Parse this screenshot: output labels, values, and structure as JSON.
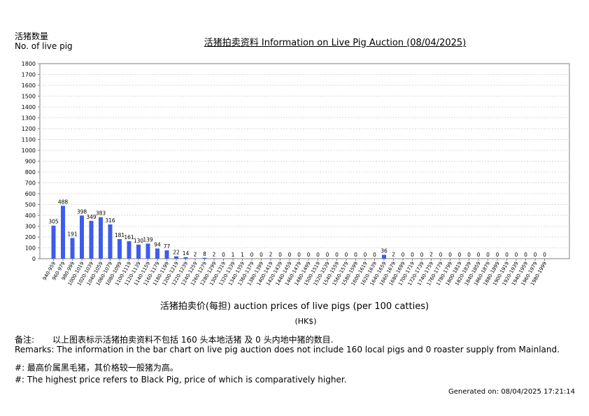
{
  "header": {
    "ylabel_zh": "活猪数量",
    "ylabel_en": "No. of live pig",
    "title": "活猪拍卖资料 Information on Live Pig Auction (08/04/2025)"
  },
  "axis": {
    "xlabel": "活猪拍卖价(每担) auction prices of live pigs (per 100 catties)",
    "unit": "(HK$)"
  },
  "notes": {
    "remark_zh_label": "备注:",
    "remark_zh": "以上图表标示活猪拍卖资料不包括 160 头本地活猪 及 0 头内地中猪的数目.",
    "remark_en": "Remarks: The information in the bar chart on live pig auction does not include 160 local pigs and 0 roaster supply from Mainland.",
    "hash_zh": "#: 最高价属黑毛猪，其价格较一般猪为高。",
    "hash_en": "#: The highest price refers to Black Pig, price of which is comparatively higher.",
    "generated": "Generated on: 08/04/2025 17:21:14"
  },
  "colors": {
    "bar": "#3d5ced",
    "grid": "#d9d9d9",
    "axis": "#808080"
  },
  "chart_data": {
    "type": "bar",
    "ylim": [
      0,
      1800
    ],
    "yticks": [
      0,
      100,
      200,
      300,
      400,
      500,
      600,
      700,
      800,
      900,
      1000,
      1100,
      1200,
      1300,
      1400,
      1500,
      1600,
      1700,
      1800
    ],
    "grid": true,
    "categories": [
      "940-959",
      "960-979",
      "980-999",
      "1000-1019",
      "1020-1039",
      "1040-1059",
      "1060-1079",
      "1080-1099",
      "1100-1119",
      "1120-1139",
      "1140-1159",
      "1160-1179",
      "1180-1199",
      "1200-1219",
      "1220-1239",
      "1240-1259",
      "1260-1279",
      "1280-1299",
      "1300-1319",
      "1320-1339",
      "1340-1359",
      "1360-1379",
      "1380-1399",
      "1400-1419",
      "1420-1439",
      "1440-1459",
      "1460-1479",
      "1480-1499",
      "1500-1519",
      "1520-1539",
      "1540-1559",
      "1560-1579",
      "1580-1599",
      "1600-1619",
      "1620-1639",
      "1640-1659",
      "1660-1679",
      "1680-1699",
      "1700-1719",
      "1720-1739",
      "1740-1759",
      "1760-1779",
      "1780-1799",
      "1800-1819",
      "1820-1839",
      "1840-1859",
      "1860-1879",
      "1880-1899",
      "1900-1919",
      "1920-1939",
      "1940-1959",
      "1960-1979",
      "1980-1999"
    ],
    "values": [
      305,
      488,
      191,
      398,
      349,
      383,
      316,
      181,
      161,
      130,
      139,
      94,
      77,
      22,
      14,
      2,
      8,
      2,
      0,
      1,
      1,
      0,
      0,
      2,
      0,
      0,
      0,
      0,
      0,
      0,
      0,
      0,
      0,
      0,
      0,
      36,
      2,
      0,
      0,
      0,
      2,
      0,
      0,
      0,
      0,
      0,
      0,
      0,
      0,
      0,
      0,
      0,
      0
    ]
  }
}
